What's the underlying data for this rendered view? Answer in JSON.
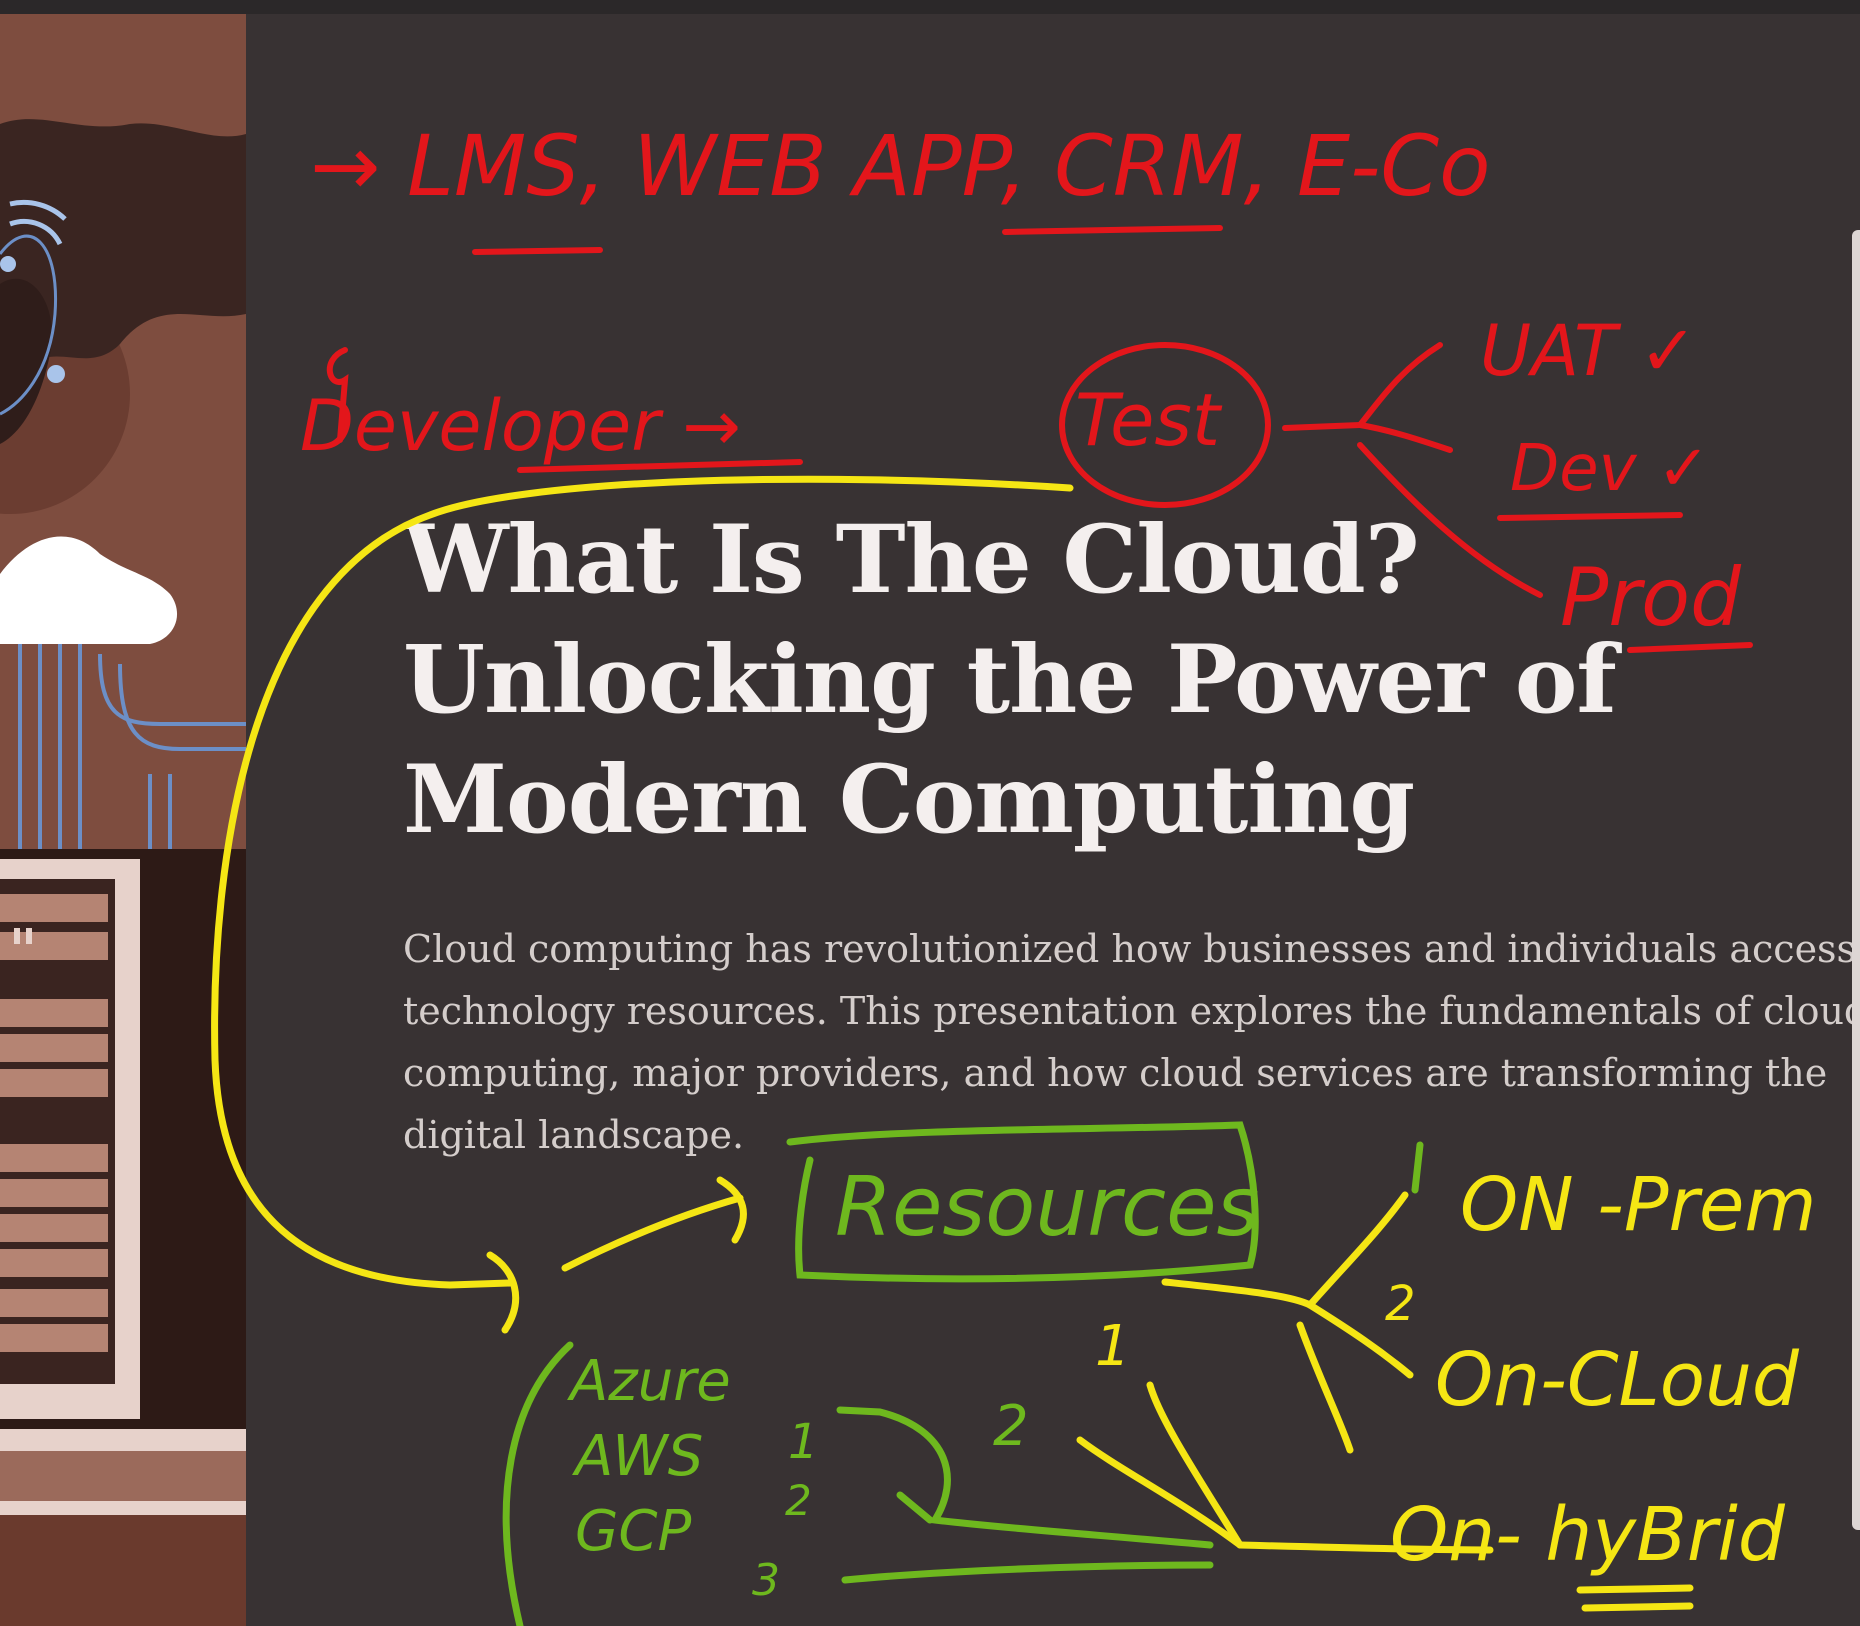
{
  "slide": {
    "title_lines": [
      "What Is The Cloud?",
      "Unlocking the Power of",
      "Modern Computing"
    ],
    "body_lines": [
      "Cloud computing has revolutionized how businesses and individuals access",
      "technology resources. This presentation explores the fundamentals of cloud",
      "computing, major providers, and how cloud services are transforming the",
      "digital landscape."
    ]
  },
  "annotations": {
    "red": {
      "top_list": "→ LMS,  WEB APP, CRM, E-Co",
      "flow_start": "Developer →",
      "test": "Test",
      "uat": "UAT ✓",
      "dev": "Dev ✓",
      "prod": "Prod"
    },
    "yellow": {
      "on_prem": "ON -Prem",
      "on_cloud": "On-CLoud",
      "on_hybrid": "On- hyBrid",
      "num_1": "1",
      "num_2": "2"
    },
    "green": {
      "resources": "Resources",
      "azure": "Azure",
      "aws": "AWS",
      "gcp": "GCP",
      "n1": "1",
      "n2": "2",
      "n3": "3",
      "n_two": "2"
    }
  },
  "colors": {
    "background": "#383233",
    "title": "#f4efee",
    "body": "#d4cdcb",
    "ink_red": "#e3161b",
    "ink_yellow": "#f5e614",
    "ink_green": "#6eb81e"
  }
}
